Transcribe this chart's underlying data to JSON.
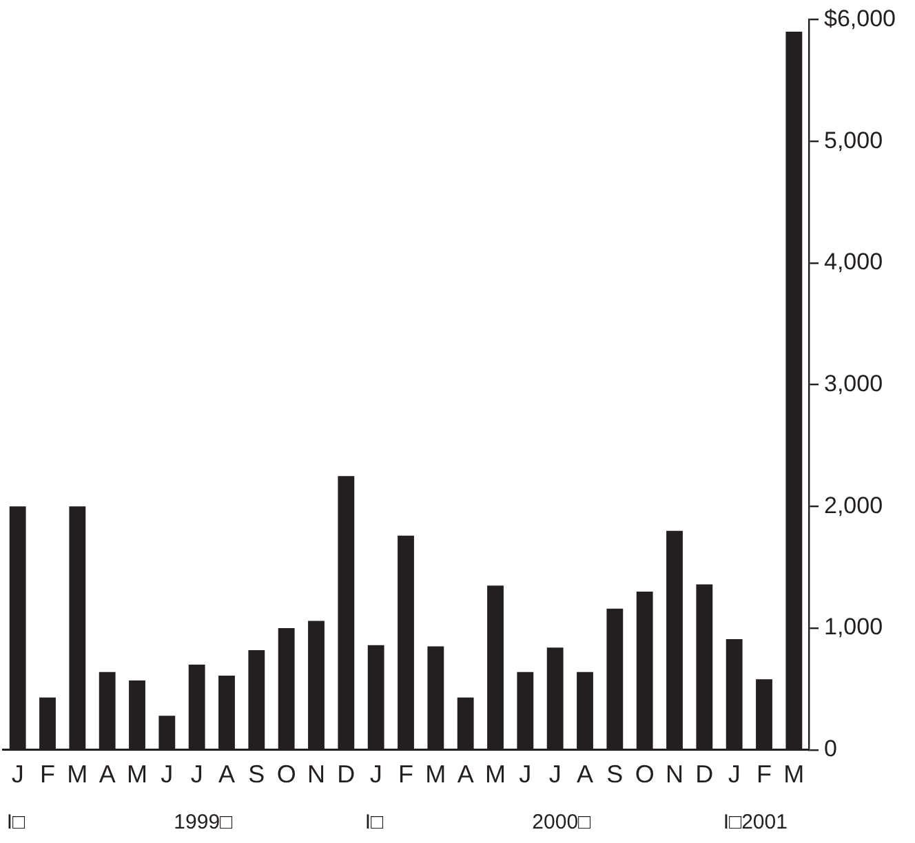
{
  "chart_data": {
    "type": "bar",
    "categories": [
      "J",
      "F",
      "M",
      "A",
      "M",
      "J",
      "J",
      "A",
      "S",
      "O",
      "N",
      "D",
      "J",
      "F",
      "M",
      "A",
      "M",
      "J",
      "J",
      "A",
      "S",
      "O",
      "N",
      "D",
      "J",
      "F",
      "M"
    ],
    "values": [
      2000,
      430,
      2000,
      640,
      570,
      280,
      700,
      610,
      820,
      1000,
      1060,
      2250,
      860,
      1760,
      850,
      430,
      1350,
      640,
      840,
      640,
      1160,
      1300,
      1800,
      1360,
      910,
      580,
      5900
    ],
    "color": "#231f20",
    "ylim": [
      0,
      6000
    ],
    "yticks": [
      0,
      {
        "value": 1000,
        "label": "1,000"
      },
      {
        "value": 2000,
        "label": "2,000"
      },
      {
        "value": 3000,
        "label": "3,000"
      },
      {
        "value": 4000,
        "label": "4,000"
      },
      {
        "value": 5000,
        "label": "5,000"
      },
      {
        "value": 6000,
        "label": "$6,000"
      }
    ],
    "annotations": [
      "I□",
      "1999□",
      "I□",
      "2000□",
      "I□2001"
    ],
    "grid": false,
    "legend": false
  }
}
